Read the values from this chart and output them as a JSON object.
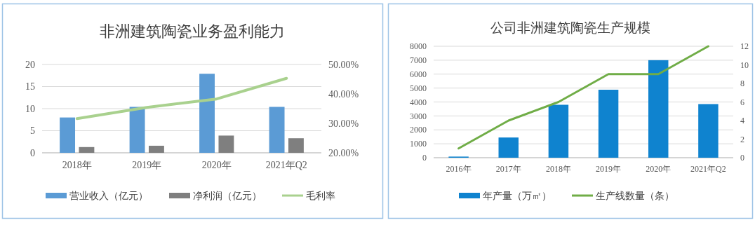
{
  "chart_data": [
    {
      "type": "bar",
      "title": "非洲建筑陶瓷业务盈利能力",
      "categories": [
        "2018年",
        "2019年",
        "2020年",
        "2021年Q2"
      ],
      "series": [
        {
          "name": "营业收入（亿元）",
          "color": "#5b9bd5",
          "values": [
            8.0,
            10.4,
            17.9,
            10.4
          ]
        },
        {
          "name": "净利润（亿元）",
          "color": "#7f7f7f",
          "values": [
            1.3,
            1.6,
            3.9,
            3.3
          ]
        },
        {
          "name": "毛利率",
          "type": "line",
          "axis": "y2",
          "color": "#a9d18e",
          "values": [
            31.6,
            35.4,
            38.3,
            45.3
          ]
        }
      ],
      "ylim": [
        0,
        20
      ],
      "yticks": [
        0,
        5,
        10,
        15,
        20
      ],
      "y2lim": [
        20,
        50
      ],
      "y2ticks": [
        {
          "value": 20,
          "label": "20.00%"
        },
        {
          "value": 30,
          "label": "30.00%"
        },
        {
          "value": 40,
          "label": "40.00%"
        },
        {
          "value": 50,
          "label": "50.00%"
        }
      ],
      "grid": "y",
      "legend": "bottom"
    },
    {
      "type": "bar",
      "title": "公司非洲建筑陶瓷生产规模",
      "categories": [
        "2016年",
        "2017年",
        "2018年",
        "2019年",
        "2020年",
        "2021年Q2"
      ],
      "series": [
        {
          "name": "年产量（万㎡）",
          "color": "#0f83cf",
          "values": [
            80,
            1450,
            3800,
            4880,
            7000,
            3850
          ]
        },
        {
          "name": "生产线数量（条）",
          "type": "line",
          "axis": "y2",
          "color": "#70ad47",
          "values": [
            1,
            4,
            6,
            9,
            9,
            12
          ]
        }
      ],
      "ylim": [
        0,
        8000
      ],
      "yticks": [
        0,
        1000,
        2000,
        3000,
        4000,
        5000,
        6000,
        7000,
        8000
      ],
      "y2lim": [
        0,
        12
      ],
      "y2ticks": [
        0,
        2,
        4,
        6,
        8,
        10,
        12
      ],
      "grid": "y",
      "legend": "bottom"
    }
  ]
}
